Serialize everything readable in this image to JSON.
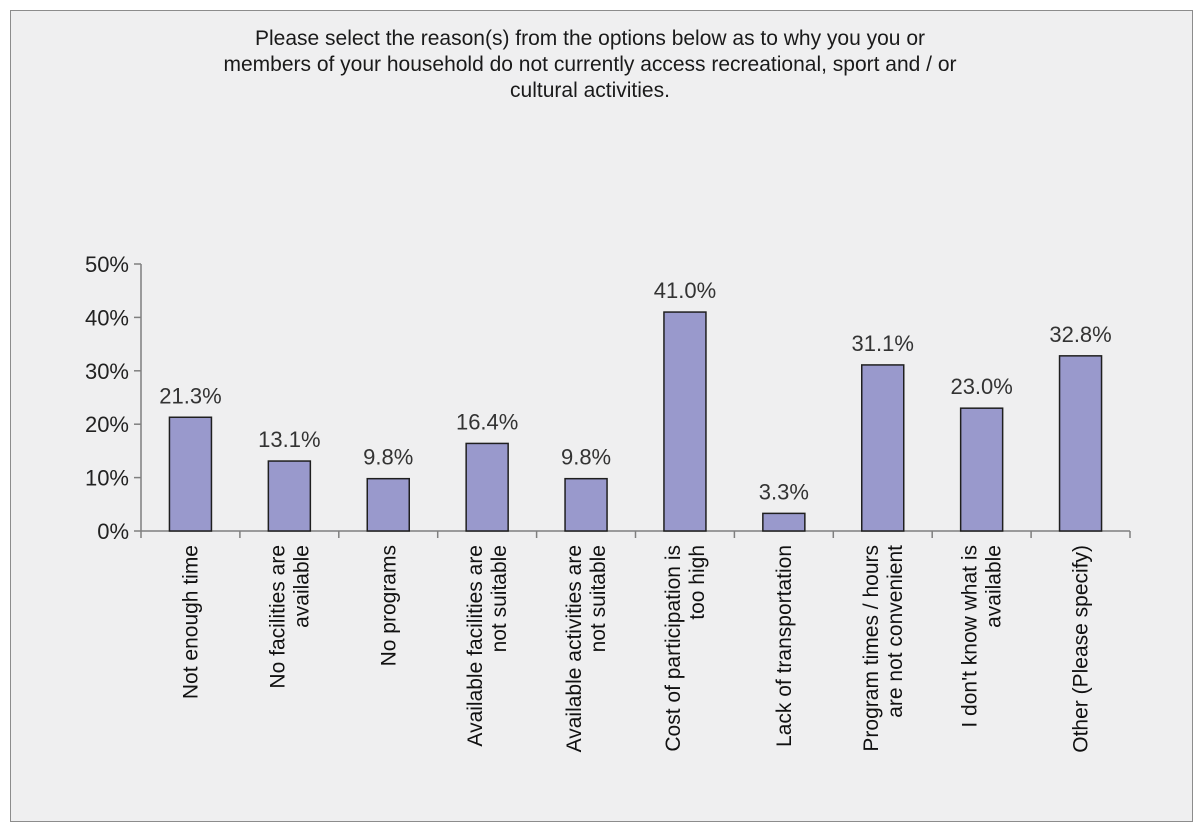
{
  "chart_data": {
    "type": "bar",
    "title": "Please select the reason(s) from the options below as to why you you or\nmembers of your household do not currently access recreational, sport and / or\ncultural activities.",
    "xlabel": "",
    "ylabel": "",
    "ylim": [
      0,
      50
    ],
    "y_ticks": [
      "0%",
      "10%",
      "20%",
      "30%",
      "40%",
      "50%"
    ],
    "grid": false,
    "legend": "none",
    "categories": [
      "Not enough time",
      "No facilities are available",
      "No programs",
      "Available facilities are not suitable",
      "Available activities are not suitable",
      "Cost of participation is too high",
      "Lack of transportation",
      "Program times / hours are not convenient",
      "I don't know what is available",
      "Other (Please specify)"
    ],
    "category_lines": [
      [
        "Not enough time"
      ],
      [
        "No facilities are",
        "available"
      ],
      [
        "No programs"
      ],
      [
        "Available facilities are",
        "not suitable"
      ],
      [
        "Available activities are",
        "not suitable"
      ],
      [
        "Cost of participation is",
        "too high"
      ],
      [
        "Lack of transportation"
      ],
      [
        "Program times / hours",
        "are not convenient"
      ],
      [
        "I don't know what is",
        "available"
      ],
      [
        "Other (Please specify)"
      ]
    ],
    "values": [
      21.3,
      13.1,
      9.8,
      16.4,
      9.8,
      41.0,
      3.3,
      31.1,
      23.0,
      32.8
    ],
    "data_labels": [
      "21.3%",
      "13.1%",
      "9.8%",
      "16.4%",
      "9.8%",
      "41.0%",
      "3.3%",
      "31.1%",
      "23.0%",
      "32.8%"
    ],
    "colors": {
      "bar_fill": "#9999cc",
      "bar_stroke": "#1f1f1f",
      "axis": "#7f7f7f"
    }
  }
}
